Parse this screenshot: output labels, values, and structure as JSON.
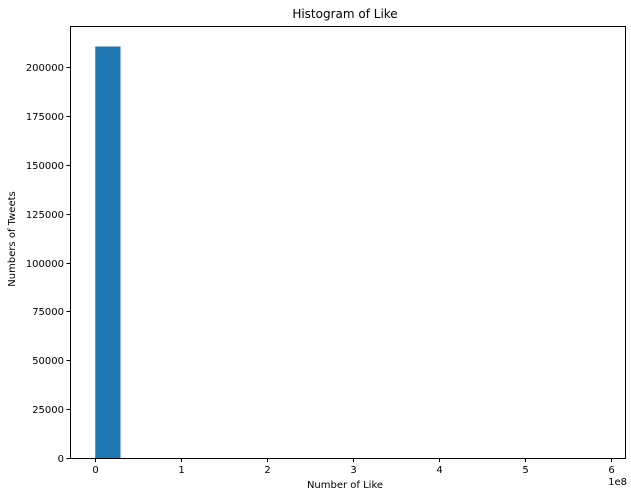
{
  "chart_data": {
    "type": "bar",
    "title": "Histogram of Like",
    "xlabel": "Number of Like",
    "ylabel": "Numbers of Tweets",
    "x_offset_label": "1e8",
    "xlim": [
      -0.294,
      6.18
    ],
    "ylim": [
      0,
      221000
    ],
    "grid": false,
    "legend": "none",
    "bar_color": "#1f77b4",
    "x_ticks": [
      0,
      1,
      2,
      3,
      4,
      5,
      6
    ],
    "x_tick_labels": [
      "0",
      "1",
      "2",
      "3",
      "4",
      "5",
      "6"
    ],
    "y_ticks": [
      0,
      25000,
      50000,
      75000,
      100000,
      125000,
      150000,
      175000,
      200000
    ],
    "y_tick_labels": [
      "0",
      "25000",
      "50000",
      "75000",
      "100000",
      "125000",
      "150000",
      "175000",
      "200000"
    ],
    "bin_width": 0.294,
    "bins": [
      {
        "x0": 0.0,
        "count": 210500
      },
      {
        "x0": 0.294,
        "count": 0
      },
      {
        "x0": 0.588,
        "count": 0
      },
      {
        "x0": 0.882,
        "count": 0
      },
      {
        "x0": 1.176,
        "count": 0
      },
      {
        "x0": 1.47,
        "count": 0
      },
      {
        "x0": 1.764,
        "count": 0
      },
      {
        "x0": 2.058,
        "count": 0
      },
      {
        "x0": 2.352,
        "count": 0
      },
      {
        "x0": 2.646,
        "count": 0
      },
      {
        "x0": 2.94,
        "count": 0
      },
      {
        "x0": 3.234,
        "count": 0
      },
      {
        "x0": 3.528,
        "count": 0
      },
      {
        "x0": 3.822,
        "count": 0
      },
      {
        "x0": 4.116,
        "count": 0
      },
      {
        "x0": 4.41,
        "count": 0
      },
      {
        "x0": 4.704,
        "count": 0
      },
      {
        "x0": 4.998,
        "count": 0
      },
      {
        "x0": 5.292,
        "count": 0
      },
      {
        "x0": 5.586,
        "count": 0
      }
    ]
  }
}
